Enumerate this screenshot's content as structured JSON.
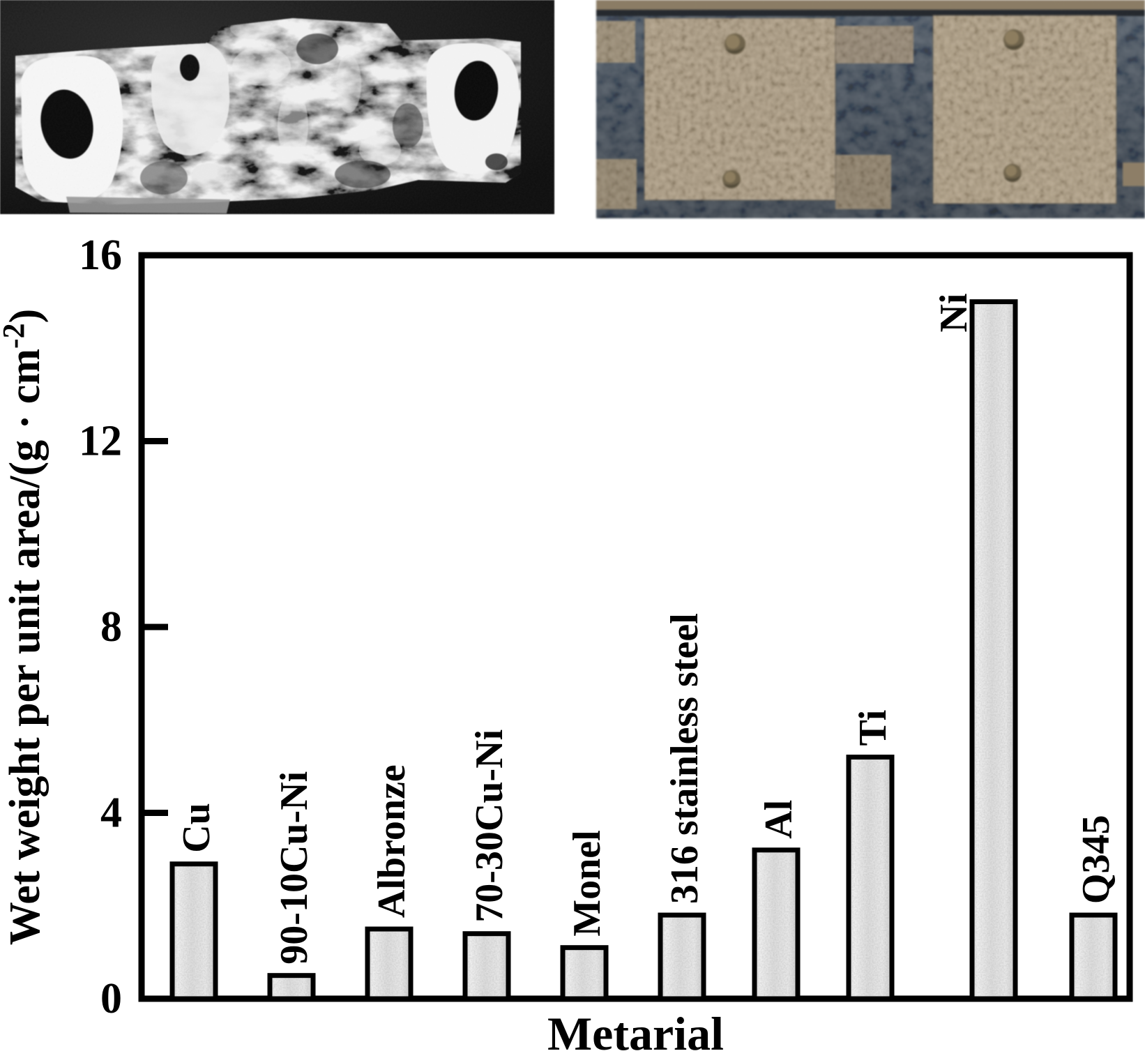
{
  "figure": {
    "background": "#ffffff",
    "photos": {
      "left": {
        "content": "grayscale close-up photo of a heavily biofouled/corroded rectangular metal strip with two dark mounting holes on white end patches, on a black background",
        "background": "#1a1a1a",
        "strip_gray": "#8e8e8e",
        "patch_white": "#f0f0f0",
        "hole_black": "#0d0d0d"
      },
      "right": {
        "content": "color photo of tan biofouled rectangular test panels bolted to a dark slate rack with a tan rail across the top",
        "background": "#3e4a55",
        "plate_tan": "#a99678",
        "rail_tan": "#8b7b61",
        "bolt_olive": "#6e6147"
      }
    }
  },
  "chart_data": {
    "type": "bar",
    "categories": [
      "Cu",
      "90-10Cu-Ni",
      "Albronze",
      "70-30Cu-Ni",
      "Monel",
      "316 stainless steel",
      "Al",
      "Ti",
      "Ni",
      "Q345"
    ],
    "values": [
      2.9,
      0.5,
      1.5,
      1.4,
      1.1,
      1.8,
      3.2,
      5.2,
      15.0,
      1.8
    ],
    "xlabel": "Metarial",
    "ylabel": "Wet weight per unit area/(g · cm⁻²)",
    "ylabel_parts": {
      "prefix": "Wet weight per unit area/(g · cm",
      "superscript": "-2",
      "suffix": ")"
    },
    "yticks": [
      0,
      4,
      8,
      12,
      16
    ],
    "ylim": [
      0,
      16
    ],
    "grid": false,
    "legend": "none",
    "frame": "full-box",
    "styles": {
      "bar_fill": "#dedede",
      "bar_fill_light": "#efefef",
      "bar_stroke": "#000000",
      "axis_color": "#000000",
      "text_color": "#000000"
    }
  }
}
